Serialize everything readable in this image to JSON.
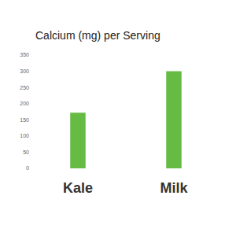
{
  "chart_data": {
    "type": "bar",
    "title": "Calcium (mg) per Serving",
    "categories": [
      "Kale",
      "Milk"
    ],
    "values": [
      172,
      300
    ],
    "color": "#66bb44",
    "ylim": [
      0,
      350
    ],
    "yticks": [
      0,
      50,
      100,
      150,
      200,
      250,
      300,
      350
    ],
    "grid": false
  }
}
